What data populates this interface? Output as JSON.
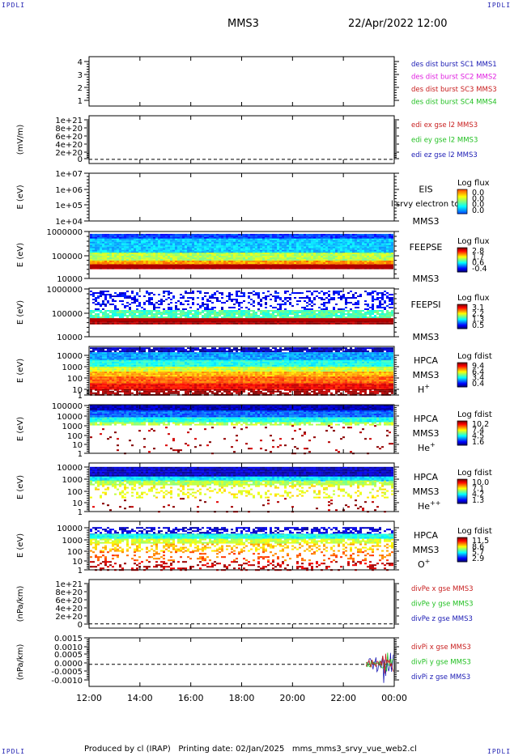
{
  "corner_labels": {
    "top_left": "IPDLI",
    "top_right": "IPDLI",
    "bottom_left": "IPDLI",
    "bottom_right": "IPDLI"
  },
  "header": {
    "title": "MMS3",
    "datetime": "22/Apr/2022 12:00"
  },
  "footer": {
    "text": "Produced by cl (IRAP)   Printing date: 02/Jan/2025   mms_mms3_srvy_vue_web2.cl"
  },
  "colors": {
    "red": "#c81e1e",
    "magenta": "#e020e0",
    "green": "#22c022",
    "blue": "#1a1ab4",
    "line_red": "#dd0000"
  },
  "x_axis": {
    "tick_labels": [
      "12:00",
      "14:00",
      "16:00",
      "18:00",
      "20:00",
      "22:00",
      "00:00"
    ],
    "range_hours": [
      12,
      24
    ]
  },
  "chart_data": [
    {
      "type": "line",
      "panel": "burst",
      "y_tick_labels": [
        "4",
        "3",
        "2",
        "1"
      ],
      "ylim": [
        0.6,
        4.4
      ],
      "legend": [
        "des dist burst SC1 MMS1",
        "des dist burst SC2 MMS2",
        "des dist burst SC3 MMS3",
        "des dist burst SC4 MMS4"
      ],
      "legend_colors": [
        "blue",
        "magenta",
        "red",
        "green"
      ]
    },
    {
      "type": "line",
      "panel": "edi",
      "ylabel": "(mV/m)",
      "y_tick_labels": [
        "1e+21",
        "8e+20",
        "6e+20",
        "4e+20",
        "2e+20",
        "0"
      ],
      "ylim": [
        -1e+20,
        1.05e+21
      ],
      "legend": [
        "edi ex gse l2 MMS3",
        "edi ey gse l2 MMS3",
        "edi ez gse l2 MMS3"
      ],
      "legend_colors": [
        "red",
        "green",
        "blue"
      ]
    },
    {
      "type": "heatmap",
      "panel": "eis",
      "ylabel": "E (eV)",
      "log_y": true,
      "y_tick_labels": [
        "1e+07",
        "1e+06",
        "1e+05",
        "1e+04"
      ],
      "labels": [
        "EIS",
        "MMS3"
      ],
      "overlay_text": "l srvy electron to",
      "colorbar_title": "Log flux",
      "colorbar_ticks": [
        "0.0",
        "0.0",
        "0.0",
        "0.0"
      ]
    },
    {
      "type": "heatmap",
      "panel": "feeps_e",
      "ylabel": "E (eV)",
      "log_y": true,
      "y_tick_labels": [
        "1000000",
        "100000",
        "10000"
      ],
      "labels": [
        "FEEPSE",
        "MMS3"
      ],
      "colorbar_title": "Log flux",
      "colorbar_ticks": [
        "2.8",
        "1.7",
        "0.6",
        "-0.4"
      ]
    },
    {
      "type": "heatmap",
      "panel": "feeps_i",
      "ylabel": "E (eV)",
      "log_y": true,
      "y_tick_labels": [
        "1000000",
        "100000",
        "10000"
      ],
      "labels": [
        "FEEPSI",
        "MMS3"
      ],
      "colorbar_title": "Log flux",
      "colorbar_ticks": [
        "3.1",
        "2.2",
        "1.3",
        "0.5"
      ]
    },
    {
      "type": "heatmap",
      "panel": "hpca_h",
      "ylabel": "E (eV)",
      "log_y": true,
      "y_tick_labels": [
        "10000",
        "1000",
        "100",
        "10",
        "1"
      ],
      "labels": [
        "HPCA",
        "MMS3",
        "H+"
      ],
      "colorbar_title": "Log fdist",
      "colorbar_ticks": [
        "9.4",
        "6.4",
        "3.4",
        "0.4"
      ]
    },
    {
      "type": "heatmap",
      "panel": "hpca_he",
      "ylabel": "E (eV)",
      "log_y": true,
      "y_tick_labels": [
        "100000",
        "10000",
        "1000",
        "100",
        "10",
        "1"
      ],
      "labels": [
        "HPCA",
        "MMS3",
        "He+"
      ],
      "colorbar_title": "Log fdist",
      "colorbar_ticks": [
        "10.2",
        "7.4",
        "4.5",
        "1.6"
      ]
    },
    {
      "type": "heatmap",
      "panel": "hpca_hepp",
      "ylabel": "E (eV)",
      "log_y": true,
      "y_tick_labels": [
        "10000",
        "1000",
        "100",
        "10",
        "1"
      ],
      "labels": [
        "HPCA",
        "MMS3",
        "He++"
      ],
      "colorbar_title": "Log fdist",
      "colorbar_ticks": [
        "10.0",
        "7.1",
        "4.2",
        "1.3"
      ]
    },
    {
      "type": "heatmap",
      "panel": "hpca_o",
      "ylabel": "E (eV)",
      "log_y": true,
      "y_tick_labels": [
        "10000",
        "1000",
        "100",
        "10",
        "1"
      ],
      "labels": [
        "HPCA",
        "MMS3",
        "O+"
      ],
      "colorbar_title": "Log fdist",
      "colorbar_ticks": [
        "11.5",
        "8.6",
        "5.7",
        "2.9"
      ]
    },
    {
      "type": "line",
      "panel": "divpe",
      "ylabel": "(nPa/km)",
      "y_tick_labels": [
        "1e+21",
        "8e+20",
        "6e+20",
        "4e+20",
        "2e+20",
        "0"
      ],
      "ylim": [
        -1e+20,
        1.05e+21
      ],
      "legend": [
        "divPe x gse MMS3",
        "divPe y gse MMS3",
        "divPe z gse MMS3"
      ],
      "legend_colors": [
        "red",
        "green",
        "blue"
      ]
    },
    {
      "type": "line",
      "panel": "divpi",
      "ylabel": "(nPa/km)",
      "y_tick_labels": [
        "0.0015",
        "0.0010",
        "0.0005",
        "0.0000",
        "-0.0005",
        "-0.0010"
      ],
      "ylim": [
        -0.00125,
        0.0015
      ],
      "legend": [
        "divPi x gse MMS3",
        "divPi y gse MMS3",
        "divPi z gse MMS3"
      ],
      "legend_colors": [
        "red",
        "green",
        "blue"
      ],
      "activity_start_hour": 22.9
    }
  ]
}
